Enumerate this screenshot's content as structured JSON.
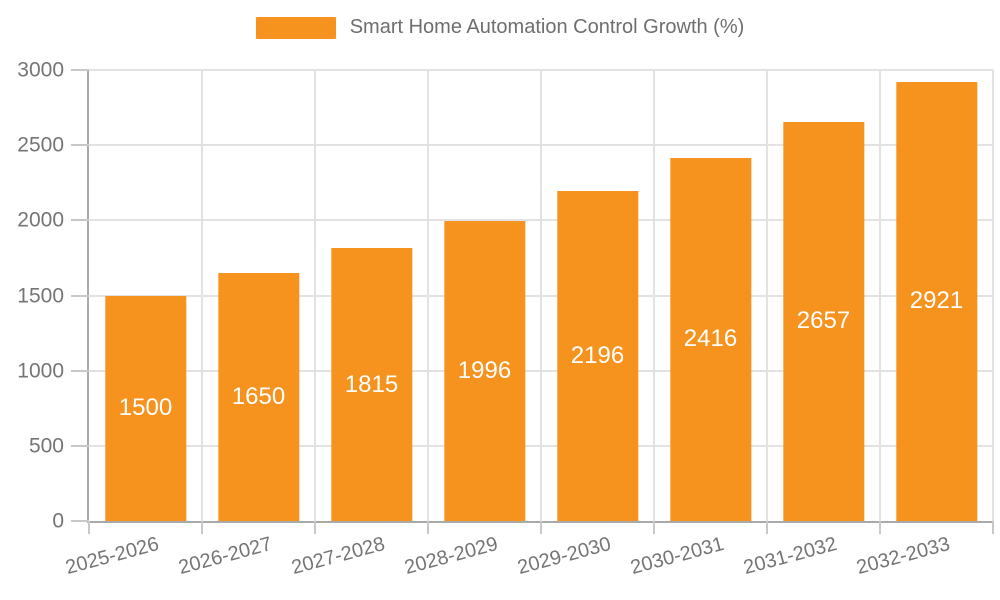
{
  "chart_data": {
    "type": "bar",
    "legend_label": "Smart Home Automation Control Growth (%)",
    "categories": [
      "2025-2026",
      "2026-2027",
      "2027-2028",
      "2028-2029",
      "2029-2030",
      "2030-2031",
      "2031-2032",
      "2032-2033"
    ],
    "values": [
      1500,
      1650,
      1815,
      1996,
      2196,
      2416,
      2657,
      2921
    ],
    "xlabel": "",
    "ylabel": "",
    "ylim": [
      0,
      3000
    ],
    "yticks": [
      0,
      500,
      1000,
      1500,
      2000,
      2500,
      3000
    ],
    "grid": "on",
    "legend_position": "top-center",
    "data_label_position": "inside-center",
    "colors": {
      "bar": "#F6921E",
      "bar_label": "#FFFFFF",
      "axis_text": "#757575",
      "legend_text": "#6E6E6E",
      "grid_line": "#E2E2E2",
      "axis_line": "#A9A9A9",
      "tick_mark": "#C8C8C8",
      "background": "#FFFFFF"
    }
  }
}
